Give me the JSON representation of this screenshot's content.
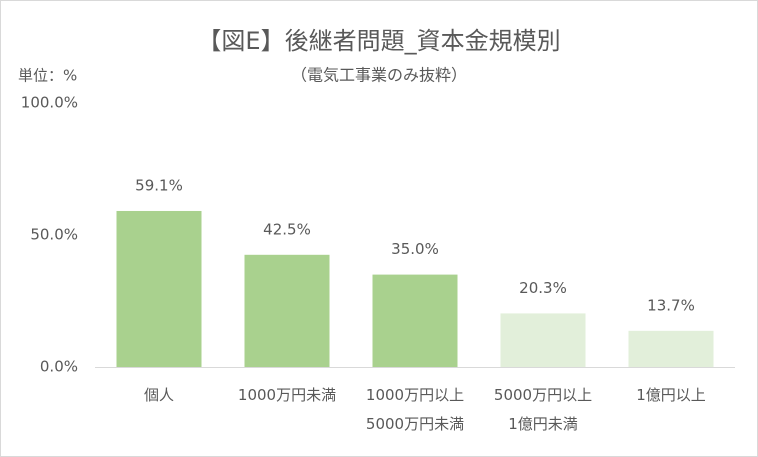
{
  "chart_data": {
    "type": "bar",
    "title": "【図E】後継者問題_資本金規模別",
    "subtitle": "（電気工事業のみ抜粋）",
    "unit_label": "単位：%",
    "categories": [
      "個人",
      "1000万円未満",
      "1000万円以上\n5000万円未満",
      "5000万円以上\n1億円未満",
      "1億円以上"
    ],
    "values": [
      59.1,
      42.5,
      35.0,
      20.3,
      13.7
    ],
    "value_labels": [
      "59.1%",
      "42.5%",
      "35.0%",
      "20.3%",
      "13.7%"
    ],
    "colors": [
      "#a9d18e",
      "#a9d18e",
      "#a9d18e",
      "#e2efda",
      "#e2efda"
    ],
    "ylim": [
      0,
      100
    ],
    "yticks": [
      {
        "value": 0,
        "label": "0.0%"
      },
      {
        "value": 50,
        "label": "50.0%"
      },
      {
        "value": 100,
        "label": "100.0%"
      }
    ],
    "grid": false
  }
}
